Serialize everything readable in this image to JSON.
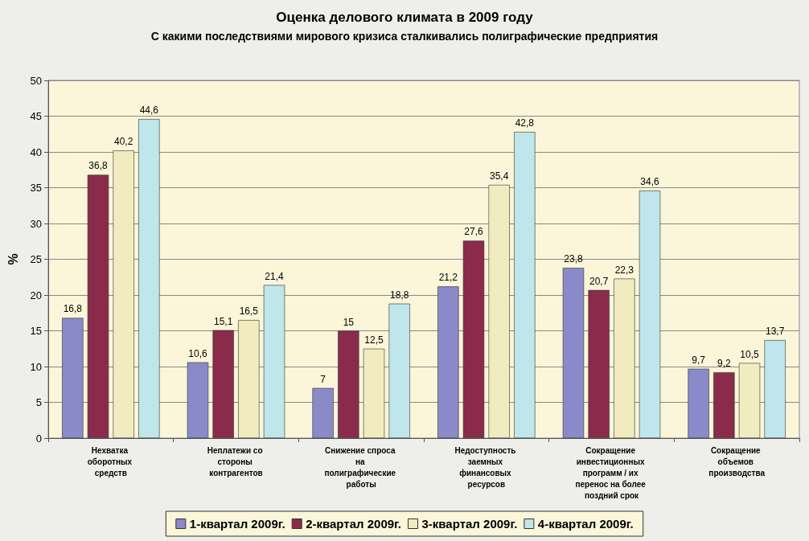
{
  "chart_data": {
    "type": "bar",
    "title": "Оценка делового климата в 2009 году",
    "subtitle": "С какими последствиями мирового кризиса сталкивались полиграфические предприятия",
    "ylabel": "%",
    "categories": [
      "Нехватка оборотных средств",
      "Неплатежи со стороны контрагентов",
      "Снижение спроса на полиграфические работы",
      "Недоступность заемных финансовых ресурсов",
      "Сокращение инвестиционных программ / их перенос на более поздний срок",
      "Сокращение объемов производства"
    ],
    "series": [
      {
        "name": "1-квартал 2009г.",
        "color": "#8a8ac8",
        "values": [
          16.8,
          10.6,
          7,
          21.2,
          23.8,
          9.7
        ],
        "value_labels": [
          "16,8",
          "10,6",
          "7",
          "21,2",
          "23,8",
          "9,7"
        ]
      },
      {
        "name": "2-квартал 2009г.",
        "color": "#8b2b4b",
        "values": [
          36.8,
          15.1,
          15,
          27.6,
          20.7,
          9.2
        ],
        "value_labels": [
          "36,8",
          "15,1",
          "15",
          "27,6",
          "20,7",
          "9,2"
        ]
      },
      {
        "name": "3-квартал 2009г.",
        "color": "#f0ecc0",
        "values": [
          40.2,
          16.5,
          12.5,
          35.4,
          22.3,
          10.5
        ],
        "value_labels": [
          "40,2",
          "16,5",
          "12,5",
          "35,4",
          "22,3",
          "10,5"
        ]
      },
      {
        "name": "4-квартал 2009г.",
        "color": "#bfe6ea",
        "values": [
          44.6,
          21.4,
          18.8,
          42.8,
          34.6,
          13.7
        ],
        "value_labels": [
          "44,6",
          "21,4",
          "18,8",
          "42,8",
          "34,6",
          "13,7"
        ]
      }
    ],
    "ylim": [
      0,
      50
    ],
    "yticks": [
      0,
      5,
      10,
      15,
      20,
      25,
      30,
      35,
      40,
      45,
      50
    ],
    "grid": "y",
    "legend": "bottom"
  }
}
